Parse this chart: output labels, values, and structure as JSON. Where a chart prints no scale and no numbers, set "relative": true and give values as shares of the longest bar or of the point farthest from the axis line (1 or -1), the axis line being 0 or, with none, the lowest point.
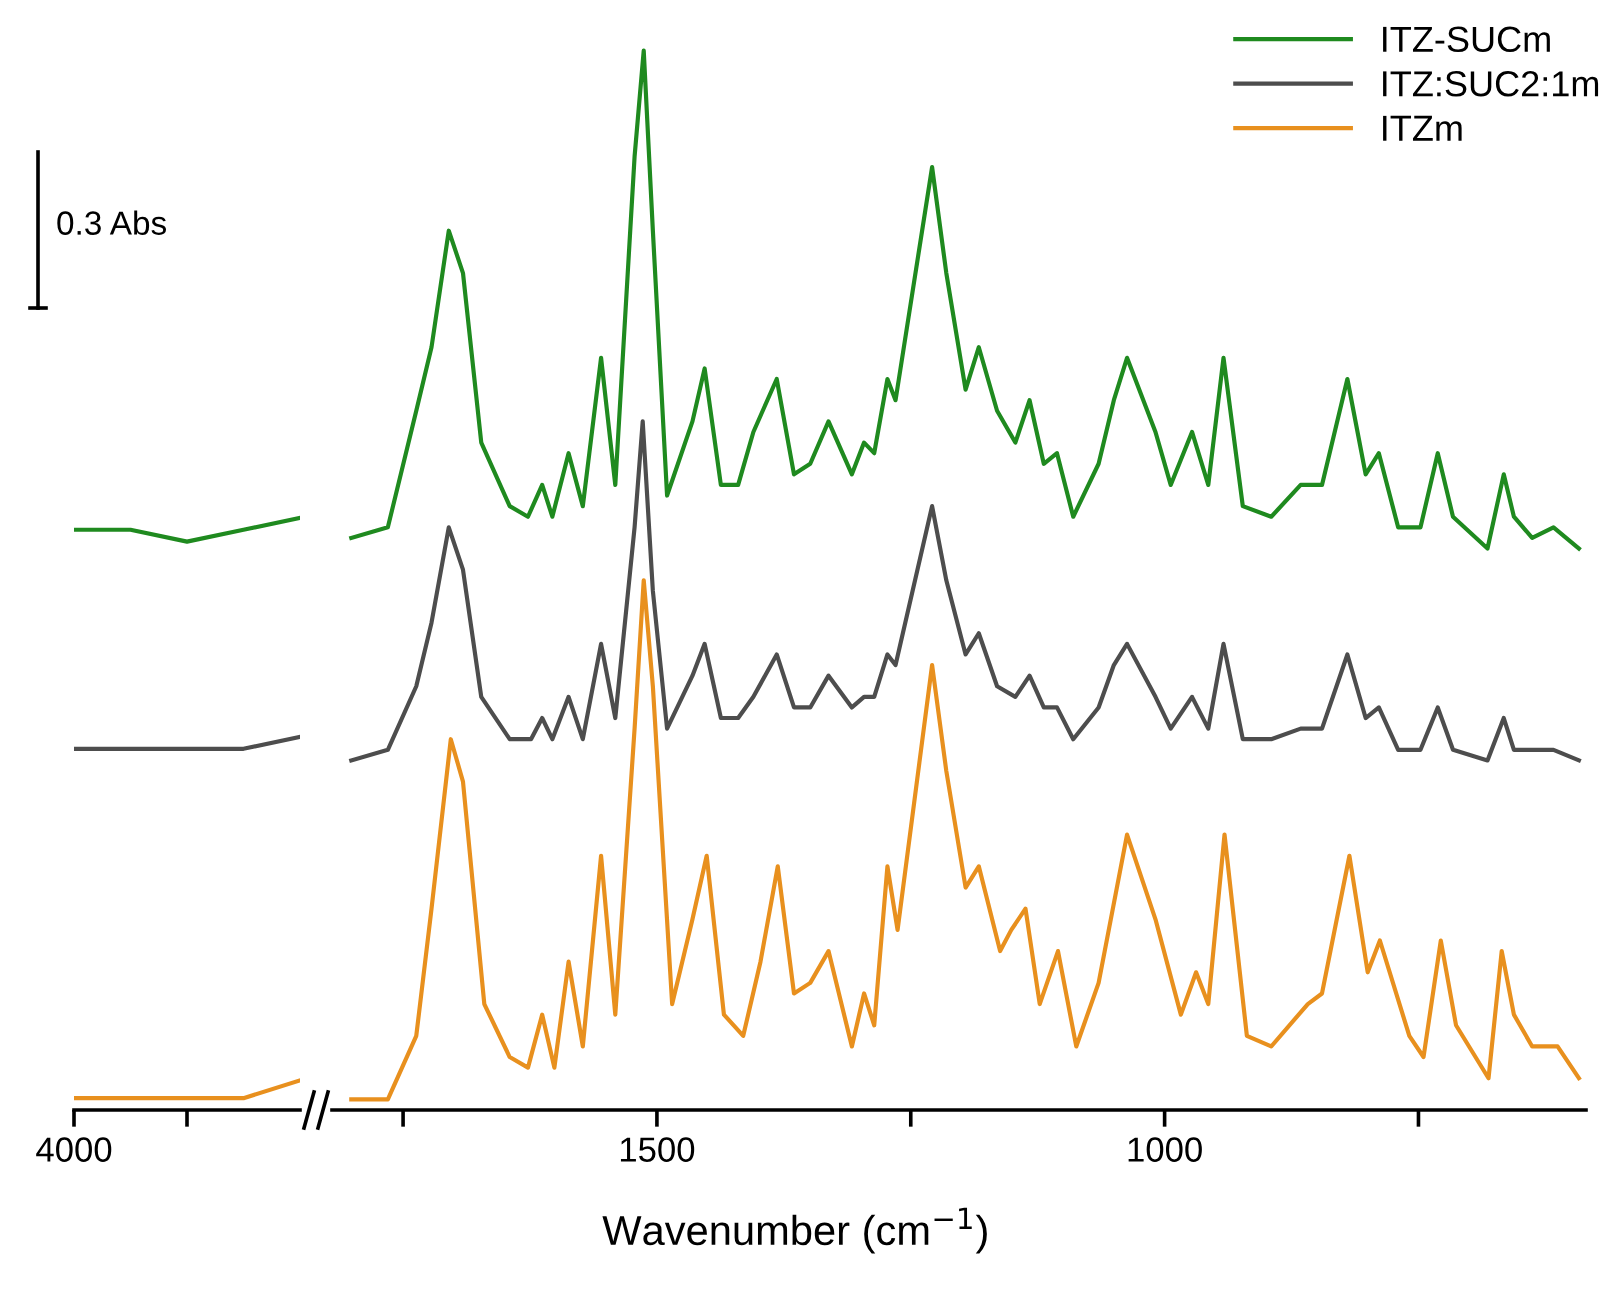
{
  "chart_data": [
    {
      "type": "line",
      "relative": true,
      "categories": [
        null,
        null,
        null,
        null,
        null
      ],
      "annotations": [
        "4000",
        "0.3 Abs"
      ],
      "series": [
        {
          "color": "#1f8a1f",
          "values": [
            0.98,
            0.98,
            0.96,
            0.98,
            1.0
          ]
        },
        {
          "color": "#4d4d4d",
          "values": [
            0.61,
            0.61,
            0.61,
            0.61,
            0.63
          ]
        },
        {
          "color": "#e8901e",
          "values": [
            0.02,
            0.02,
            0.02,
            0.02,
            0.05
          ]
        }
      ]
    },
    {
      "type": "line",
      "relative": true,
      "xlim": [
        1820,
        585
      ],
      "xticks": [
        {
          "value": 1750,
          "label": null
        },
        1500,
        {
          "value": 1250,
          "label": null
        },
        1000,
        {
          "value": 750,
          "label": null
        }
      ],
      "xlabel": "Wavenumber (cm$^{−1}$)",
      "legend": "top right",
      "series": [
        {
          "name": "ITZ-SUCm",
          "color": "#1f8a1f",
          "x": [
            1801,
            1765,
            1737,
            1722,
            1705,
            1691,
            1673,
            1645,
            1627,
            1613,
            1603,
            1587,
            1573,
            1555,
            1541,
            1522,
            1513,
            1504,
            1490,
            1465,
            1453,
            1437,
            1420,
            1405,
            1382,
            1365,
            1349,
            1331,
            1308,
            1296,
            1286,
            1273,
            1265,
            1229,
            1215,
            1196,
            1183,
            1165,
            1147,
            1133,
            1119,
            1106,
            1090,
            1065,
            1050,
            1037,
            1009,
            994,
            973,
            957,
            942,
            923,
            895,
            866,
            845,
            820,
            802,
            789,
            770,
            748,
            731,
            716,
            682,
            666,
            656,
            638,
            617,
            592
          ],
          "values": [
            0.54,
            0.55,
            0.66,
            0.72,
            0.83,
            0.79,
            0.63,
            0.57,
            0.56,
            0.59,
            0.56,
            0.62,
            0.57,
            0.71,
            0.59,
            0.9,
            1.0,
            0.83,
            0.58,
            0.65,
            0.7,
            0.59,
            0.59,
            0.64,
            0.69,
            0.6,
            0.61,
            0.65,
            0.6,
            0.63,
            0.62,
            0.69,
            0.67,
            0.89,
            0.79,
            0.68,
            0.72,
            0.66,
            0.63,
            0.67,
            0.61,
            0.62,
            0.56,
            0.61,
            0.67,
            0.71,
            0.64,
            0.59,
            0.64,
            0.59,
            0.71,
            0.57,
            0.56,
            0.59,
            0.59,
            0.69,
            0.6,
            0.62,
            0.55,
            0.55,
            0.62,
            0.56,
            0.53,
            0.6,
            0.56,
            0.54,
            0.55,
            0.53
          ]
        },
        {
          "name": "ITZ:SUC2:1m",
          "color": "#4d4d4d",
          "x": [
            1801,
            1765,
            1737,
            1722,
            1705,
            1691,
            1673,
            1645,
            1624,
            1613,
            1603,
            1587,
            1573,
            1555,
            1541,
            1522,
            1514,
            1504,
            1490,
            1465,
            1453,
            1437,
            1420,
            1405,
            1382,
            1365,
            1349,
            1331,
            1308,
            1296,
            1286,
            1273,
            1265,
            1229,
            1215,
            1196,
            1183,
            1165,
            1147,
            1133,
            1119,
            1106,
            1090,
            1065,
            1050,
            1037,
            1009,
            994,
            973,
            957,
            942,
            923,
            895,
            866,
            845,
            820,
            802,
            789,
            770,
            748,
            731,
            716,
            682,
            666,
            656,
            638,
            617,
            592
          ],
          "values": [
            0.33,
            0.34,
            0.4,
            0.46,
            0.55,
            0.51,
            0.39,
            0.35,
            0.35,
            0.37,
            0.35,
            0.39,
            0.35,
            0.44,
            0.37,
            0.55,
            0.65,
            0.49,
            0.36,
            0.41,
            0.44,
            0.37,
            0.37,
            0.39,
            0.43,
            0.38,
            0.38,
            0.41,
            0.38,
            0.39,
            0.39,
            0.43,
            0.42,
            0.57,
            0.5,
            0.43,
            0.45,
            0.4,
            0.39,
            0.41,
            0.38,
            0.38,
            0.35,
            0.38,
            0.42,
            0.44,
            0.39,
            0.36,
            0.39,
            0.36,
            0.44,
            0.35,
            0.35,
            0.36,
            0.36,
            0.43,
            0.37,
            0.38,
            0.34,
            0.34,
            0.38,
            0.34,
            0.33,
            0.37,
            0.34,
            0.34,
            0.34,
            0.33
          ]
        },
        {
          "name": "ITZm",
          "color": "#e8901e",
          "x": [
            1801,
            1765,
            1737,
            1722,
            1703,
            1691,
            1670,
            1645,
            1627,
            1613,
            1601,
            1587,
            1573,
            1555,
            1541,
            1522,
            1513,
            1504,
            1485,
            1465,
            1451,
            1434,
            1415,
            1398,
            1381,
            1365,
            1349,
            1331,
            1308,
            1296,
            1286,
            1273,
            1263,
            1229,
            1215,
            1196,
            1183,
            1162,
            1151,
            1137,
            1123,
            1105,
            1087,
            1065,
            1037,
            1009,
            984,
            969,
            957,
            941,
            919,
            895,
            859,
            845,
            818,
            800,
            788,
            759,
            745,
            728,
            713,
            681,
            668,
            656,
            638,
            613,
            592
          ],
          "values": [
            0.01,
            0.01,
            0.07,
            0.19,
            0.35,
            0.31,
            0.1,
            0.05,
            0.04,
            0.09,
            0.04,
            0.14,
            0.06,
            0.24,
            0.09,
            0.36,
            0.5,
            0.4,
            0.1,
            0.18,
            0.24,
            0.09,
            0.07,
            0.14,
            0.23,
            0.11,
            0.12,
            0.15,
            0.06,
            0.11,
            0.08,
            0.23,
            0.17,
            0.42,
            0.32,
            0.21,
            0.23,
            0.15,
            0.17,
            0.19,
            0.1,
            0.15,
            0.06,
            0.12,
            0.26,
            0.18,
            0.09,
            0.13,
            0.1,
            0.26,
            0.07,
            0.06,
            0.1,
            0.11,
            0.24,
            0.13,
            0.16,
            0.07,
            0.05,
            0.16,
            0.08,
            0.03,
            0.15,
            0.09,
            0.06,
            0.06,
            0.03
          ]
        }
      ]
    }
  ]
}
